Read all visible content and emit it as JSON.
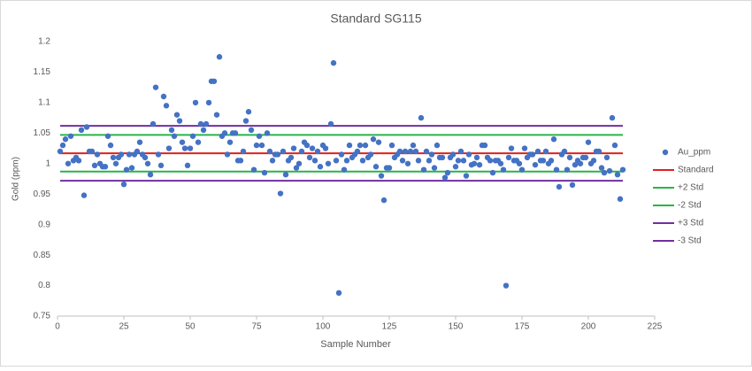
{
  "chart_data": {
    "type": "scatter",
    "title": "Standard SG115",
    "xlabel": "Sample Number",
    "ylabel": "Gold (ppm)",
    "xlim": [
      0,
      225
    ],
    "xticks": [
      0,
      25,
      50,
      75,
      100,
      125,
      150,
      175,
      200,
      225
    ],
    "ylim": [
      0.75,
      1.2
    ],
    "yticks": [
      0.75,
      0.8,
      0.85,
      0.9,
      0.95,
      1,
      1.05,
      1.1,
      1.15,
      1.2
    ],
    "legend": "right",
    "series": [
      {
        "name": "Au_ppm",
        "type": "scatter",
        "color": "#4472c4",
        "x": [
          1,
          2,
          3,
          4,
          5,
          6,
          7,
          8,
          9,
          10,
          11,
          12,
          13,
          14,
          15,
          16,
          17,
          18,
          19,
          20,
          21,
          22,
          23,
          24,
          25,
          26,
          27,
          28,
          29,
          30,
          31,
          32,
          33,
          34,
          35,
          36,
          37,
          38,
          39,
          40,
          41,
          42,
          43,
          44,
          45,
          46,
          47,
          48,
          49,
          50,
          51,
          52,
          53,
          54,
          55,
          56,
          57,
          58,
          59,
          60,
          61,
          62,
          63,
          64,
          65,
          66,
          67,
          68,
          69,
          70,
          71,
          72,
          73,
          74,
          75,
          76,
          77,
          78,
          79,
          80,
          81,
          82,
          83,
          84,
          85,
          86,
          87,
          88,
          89,
          90,
          91,
          92,
          93,
          94,
          95,
          96,
          97,
          98,
          99,
          100,
          101,
          102,
          103,
          104,
          105,
          106,
          107,
          108,
          109,
          110,
          111,
          112,
          113,
          114,
          115,
          116,
          117,
          118,
          119,
          120,
          121,
          122,
          123,
          124,
          125,
          126,
          127,
          128,
          129,
          130,
          131,
          132,
          133,
          134,
          135,
          136,
          137,
          138,
          139,
          140,
          141,
          142,
          143,
          144,
          145,
          146,
          147,
          148,
          149,
          150,
          151,
          152,
          153,
          154,
          155,
          156,
          157,
          158,
          159,
          160,
          161,
          162,
          163,
          164,
          165,
          166,
          167,
          168,
          169,
          170,
          171,
          172,
          173,
          174,
          175,
          176,
          177,
          178,
          179,
          180,
          181,
          182,
          183,
          184,
          185,
          186,
          187,
          188,
          189,
          190,
          191,
          192,
          193,
          194,
          195,
          196,
          197,
          198,
          199,
          200,
          201,
          202,
          203,
          204,
          205,
          206,
          207,
          208,
          209,
          210,
          211,
          212,
          213
        ],
        "values": [
          1.02,
          1.03,
          1.04,
          1.0,
          1.045,
          1.005,
          1.01,
          1.005,
          1.055,
          0.948,
          1.06,
          1.02,
          1.02,
          0.997,
          1.015,
          1.0,
          0.995,
          0.995,
          1.045,
          1.03,
          1.01,
          1.0,
          1.01,
          1.015,
          0.966,
          0.99,
          1.015,
          0.993,
          1.015,
          1.02,
          1.035,
          1.015,
          1.01,
          1.0,
          0.982,
          1.065,
          1.125,
          1.015,
          0.997,
          1.11,
          1.095,
          1.025,
          1.055,
          1.045,
          1.08,
          1.07,
          1.035,
          1.025,
          0.997,
          1.025,
          1.045,
          1.1,
          1.035,
          1.065,
          1.055,
          1.065,
          1.1,
          1.135,
          1.135,
          1.08,
          1.175,
          1.045,
          1.05,
          1.015,
          1.035,
          1.05,
          1.05,
          1.005,
          1.005,
          1.02,
          1.07,
          1.085,
          1.055,
          0.99,
          1.03,
          1.045,
          1.03,
          0.985,
          1.05,
          1.02,
          1.005,
          1.015,
          1.015,
          0.951,
          1.02,
          0.982,
          1.005,
          1.01,
          1.025,
          0.993,
          1.0,
          1.02,
          1.035,
          1.03,
          1.01,
          1.025,
          1.005,
          1.02,
          0.995,
          1.03,
          1.025,
          1.0,
          1.065,
          1.165,
          1.005,
          0.788,
          1.015,
          0.99,
          1.005,
          1.03,
          1.01,
          1.015,
          1.02,
          1.03,
          1.005,
          1.03,
          1.01,
          1.015,
          1.04,
          0.995,
          1.035,
          0.98,
          0.94,
          0.993,
          0.993,
          1.03,
          1.01,
          1.015,
          1.02,
          1.005,
          1.02,
          1.0,
          1.02,
          1.03,
          1.02,
          1.005,
          1.075,
          0.99,
          1.02,
          1.005,
          1.015,
          0.993,
          1.03,
          1.01,
          1.01,
          0.977,
          0.985,
          1.01,
          1.015,
          0.995,
          1.005,
          1.02,
          1.005,
          0.98,
          1.015,
          0.998,
          1.0,
          1.01,
          0.998,
          1.03,
          1.03,
          1.01,
          1.005,
          0.985,
          1.005,
          1.005,
          1.0,
          0.99,
          0.8,
          1.01,
          1.025,
          1.005,
          1.005,
          1.0,
          0.99,
          1.025,
          1.01,
          1.015,
          1.015,
          0.998,
          1.02,
          1.005,
          1.005,
          1.02,
          1.0,
          1.005,
          1.04,
          0.99,
          0.962,
          1.015,
          1.02,
          0.99,
          1.01,
          0.965,
          0.998,
          1.005,
          1.0,
          1.01,
          1.01,
          1.035,
          1.0,
          1.005,
          1.02,
          1.02,
          0.993,
          0.985,
          1.01,
          0.988,
          1.075,
          1.03,
          0.982,
          0.942,
          0.99
        ]
      },
      {
        "name": "Standard",
        "type": "line",
        "color": "#e0201b",
        "x": [
          1,
          213
        ],
        "values": [
          1.017,
          1.017
        ]
      },
      {
        "name": "+2 Std",
        "type": "line",
        "color": "#2bb34a",
        "x": [
          1,
          213
        ],
        "values": [
          1.047,
          1.047
        ]
      },
      {
        "name": "-2 Std",
        "type": "line",
        "color": "#2bb34a",
        "x": [
          1,
          213
        ],
        "values": [
          0.987,
          0.987
        ]
      },
      {
        "name": "+3 Std",
        "type": "line",
        "color": "#7030a0",
        "x": [
          1,
          213
        ],
        "values": [
          1.062,
          1.062
        ]
      },
      {
        "name": "-3 Std",
        "type": "line",
        "color": "#7030a0",
        "x": [
          1,
          213
        ],
        "values": [
          0.972,
          0.972
        ]
      }
    ]
  }
}
